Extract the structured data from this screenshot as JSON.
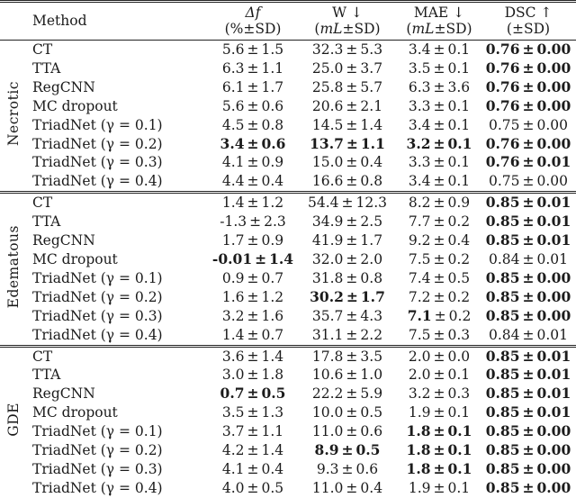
{
  "table": {
    "pm": "±",
    "columns": [
      {
        "key": "method",
        "label": "Method"
      },
      {
        "key": "delta_f",
        "label": "Δf",
        "sub_parts": [
          "(%",
          "",
          "±SD)"
        ]
      },
      {
        "key": "w",
        "label": "W ↓",
        "sub_parts": [
          "(",
          "mL",
          "±SD)"
        ]
      },
      {
        "key": "mae",
        "label": "MAE ↓",
        "sub_parts": [
          "(",
          "mL",
          "±SD)"
        ]
      },
      {
        "key": "dsc",
        "label": "DSC ↑",
        "sub_parts": [
          "(",
          "",
          "±SD)"
        ]
      }
    ],
    "sections": [
      {
        "group": "Necrotic",
        "rows": [
          {
            "method": "CT",
            "cells": [
              {
                "m": "5.6",
                "s": "1.5",
                "bold": "none"
              },
              {
                "m": "32.3",
                "s": "5.3",
                "bold": "none"
              },
              {
                "m": "3.4",
                "s": "0.1",
                "bold": "none"
              },
              {
                "m": "0.76",
                "s": "0.00",
                "bold": "all"
              }
            ]
          },
          {
            "method": "TTA",
            "cells": [
              {
                "m": "6.3",
                "s": "1.1",
                "bold": "none"
              },
              {
                "m": "25.0",
                "s": "3.7",
                "bold": "none"
              },
              {
                "m": "3.5",
                "s": "0.1",
                "bold": "none"
              },
              {
                "m": "0.76",
                "s": "0.00",
                "bold": "all"
              }
            ]
          },
          {
            "method": "RegCNN",
            "cells": [
              {
                "m": "6.1",
                "s": "1.7",
                "bold": "none"
              },
              {
                "m": "25.8",
                "s": "5.7",
                "bold": "none"
              },
              {
                "m": "6.3",
                "s": "3.6",
                "bold": "none"
              },
              {
                "m": "0.76",
                "s": "0.00",
                "bold": "all"
              }
            ]
          },
          {
            "method": "MC dropout",
            "cells": [
              {
                "m": "5.6",
                "s": "0.6",
                "bold": "none"
              },
              {
                "m": "20.6",
                "s": "2.1",
                "bold": "none"
              },
              {
                "m": "3.3",
                "s": "0.1",
                "bold": "none"
              },
              {
                "m": "0.76",
                "s": "0.00",
                "bold": "all"
              }
            ]
          },
          {
            "method": "TriadNet (γ = 0.1)",
            "cells": [
              {
                "m": "4.5",
                "s": "0.8",
                "bold": "none"
              },
              {
                "m": "14.5",
                "s": "1.4",
                "bold": "none"
              },
              {
                "m": "3.4",
                "s": "0.1",
                "bold": "none"
              },
              {
                "m": "0.75",
                "s": "0.00",
                "bold": "none"
              }
            ]
          },
          {
            "method": "TriadNet (γ = 0.2)",
            "cells": [
              {
                "m": "3.4",
                "s": "0.6",
                "bold": "all"
              },
              {
                "m": "13.7",
                "s": "1.1",
                "bold": "all"
              },
              {
                "m": "3.2",
                "s": "0.1",
                "bold": "all"
              },
              {
                "m": "0.76",
                "s": "0.00",
                "bold": "all"
              }
            ]
          },
          {
            "method": "TriadNet (γ = 0.3)",
            "cells": [
              {
                "m": "4.1",
                "s": "0.9",
                "bold": "none"
              },
              {
                "m": "15.0",
                "s": "0.4",
                "bold": "none"
              },
              {
                "m": "3.3",
                "s": "0.1",
                "bold": "none"
              },
              {
                "m": "0.76",
                "s": "0.01",
                "bold": "all"
              }
            ]
          },
          {
            "method": "TriadNet (γ = 0.4)",
            "cells": [
              {
                "m": "4.4",
                "s": "0.4",
                "bold": "none"
              },
              {
                "m": "16.6",
                "s": "0.8",
                "bold": "none"
              },
              {
                "m": "3.4",
                "s": "0.1",
                "bold": "none"
              },
              {
                "m": "0.75",
                "s": "0.00",
                "bold": "none"
              }
            ]
          }
        ]
      },
      {
        "group": "Edematous",
        "rows": [
          {
            "method": "CT",
            "cells": [
              {
                "m": "1.4",
                "s": "1.2",
                "bold": "none"
              },
              {
                "m": "54.4",
                "s": "12.3",
                "bold": "none"
              },
              {
                "m": "8.2",
                "s": "0.9",
                "bold": "none"
              },
              {
                "m": "0.85",
                "s": "0.01",
                "bold": "all"
              }
            ]
          },
          {
            "method": "TTA",
            "cells": [
              {
                "m": "-1.3",
                "s": "2.3",
                "bold": "none"
              },
              {
                "m": "34.9",
                "s": "2.5",
                "bold": "none"
              },
              {
                "m": "7.7",
                "s": "0.2",
                "bold": "none"
              },
              {
                "m": "0.85",
                "s": "0.01",
                "bold": "all"
              }
            ]
          },
          {
            "method": "RegCNN",
            "cells": [
              {
                "m": "1.7",
                "s": "0.9",
                "bold": "none"
              },
              {
                "m": "41.9",
                "s": "1.7",
                "bold": "none"
              },
              {
                "m": "9.2",
                "s": "0.4",
                "bold": "none"
              },
              {
                "m": "0.85",
                "s": "0.01",
                "bold": "all"
              }
            ]
          },
          {
            "method": "MC dropout",
            "cells": [
              {
                "m": "-0.01",
                "s": "1.4",
                "bold": "all"
              },
              {
                "m": "32.0",
                "s": "2.0",
                "bold": "none"
              },
              {
                "m": "7.5",
                "s": "0.2",
                "bold": "none"
              },
              {
                "m": "0.84",
                "s": "0.01",
                "bold": "none"
              }
            ]
          },
          {
            "method": "TriadNet (γ = 0.1)",
            "cells": [
              {
                "m": "0.9",
                "s": "0.7",
                "bold": "none"
              },
              {
                "m": "31.8",
                "s": "0.8",
                "bold": "none"
              },
              {
                "m": "7.4",
                "s": "0.5",
                "bold": "none"
              },
              {
                "m": "0.85",
                "s": "0.00",
                "bold": "all"
              }
            ]
          },
          {
            "method": "TriadNet (γ = 0.2)",
            "cells": [
              {
                "m": "1.6",
                "s": "1.2",
                "bold": "none"
              },
              {
                "m": "30.2",
                "s": "1.7",
                "bold": "all"
              },
              {
                "m": "7.2",
                "s": "0.2",
                "bold": "none"
              },
              {
                "m": "0.85",
                "s": "0.00",
                "bold": "all"
              }
            ]
          },
          {
            "method": "TriadNet (γ = 0.3)",
            "cells": [
              {
                "m": "3.2",
                "s": "1.6",
                "bold": "none"
              },
              {
                "m": "35.7",
                "s": "4.3",
                "bold": "none"
              },
              {
                "m": "7.1",
                "s": "0.2",
                "bold": "mean"
              },
              {
                "m": "0.85",
                "s": "0.00",
                "bold": "all"
              }
            ]
          },
          {
            "method": "TriadNet (γ = 0.4)",
            "cells": [
              {
                "m": "1.4",
                "s": "0.7",
                "bold": "none"
              },
              {
                "m": "31.1",
                "s": "2.2",
                "bold": "none"
              },
              {
                "m": "7.5",
                "s": "0.3",
                "bold": "none"
              },
              {
                "m": "0.84",
                "s": "0.01",
                "bold": "none"
              }
            ]
          }
        ]
      },
      {
        "group": "GDE",
        "rows": [
          {
            "method": "CT",
            "cells": [
              {
                "m": "3.6",
                "s": "1.4",
                "bold": "none"
              },
              {
                "m": "17.8",
                "s": "3.5",
                "bold": "none"
              },
              {
                "m": "2.0",
                "s": "0.0",
                "bold": "none"
              },
              {
                "m": "0.85",
                "s": "0.01",
                "bold": "all"
              }
            ]
          },
          {
            "method": "TTA",
            "cells": [
              {
                "m": "3.0",
                "s": "1.8",
                "bold": "none"
              },
              {
                "m": "10.6",
                "s": "1.0",
                "bold": "none"
              },
              {
                "m": "2.0",
                "s": "0.1",
                "bold": "none"
              },
              {
                "m": "0.85",
                "s": "0.01",
                "bold": "all"
              }
            ]
          },
          {
            "method": "RegCNN",
            "cells": [
              {
                "m": "0.7",
                "s": "0.5",
                "bold": "all"
              },
              {
                "m": "22.2",
                "s": "5.9",
                "bold": "none"
              },
              {
                "m": "3.2",
                "s": "0.3",
                "bold": "none"
              },
              {
                "m": "0.85",
                "s": "0.01",
                "bold": "all"
              }
            ]
          },
          {
            "method": "MC dropout",
            "cells": [
              {
                "m": "3.5",
                "s": "1.3",
                "bold": "none"
              },
              {
                "m": "10.0",
                "s": "0.5",
                "bold": "none"
              },
              {
                "m": "1.9",
                "s": "0.1",
                "bold": "none"
              },
              {
                "m": "0.85",
                "s": "0.01",
                "bold": "all"
              }
            ]
          },
          {
            "method": "TriadNet (γ = 0.1)",
            "cells": [
              {
                "m": "3.7",
                "s": "1.1",
                "bold": "none"
              },
              {
                "m": "11.0",
                "s": "0.6",
                "bold": "none"
              },
              {
                "m": "1.8",
                "s": "0.1",
                "bold": "all"
              },
              {
                "m": "0.85",
                "s": "0.00",
                "bold": "all"
              }
            ]
          },
          {
            "method": "TriadNet (γ = 0.2)",
            "cells": [
              {
                "m": "4.2",
                "s": "1.4",
                "bold": "none"
              },
              {
                "m": "8.9",
                "s": "0.5",
                "bold": "all"
              },
              {
                "m": "1.8",
                "s": "0.1",
                "bold": "all"
              },
              {
                "m": "0.85",
                "s": "0.00",
                "bold": "all"
              }
            ]
          },
          {
            "method": "TriadNet (γ = 0.3)",
            "cells": [
              {
                "m": "4.1",
                "s": "0.4",
                "bold": "none"
              },
              {
                "m": "9.3",
                "s": "0.6",
                "bold": "none"
              },
              {
                "m": "1.8",
                "s": "0.1",
                "bold": "all"
              },
              {
                "m": "0.85",
                "s": "0.00",
                "bold": "all"
              }
            ]
          },
          {
            "method": "TriadNet (γ = 0.4)",
            "cells": [
              {
                "m": "4.0",
                "s": "0.5",
                "bold": "none"
              },
              {
                "m": "11.0",
                "s": "0.4",
                "bold": "none"
              },
              {
                "m": "1.9",
                "s": "0.1",
                "bold": "none"
              },
              {
                "m": "0.85",
                "s": "0.00",
                "bold": "all"
              }
            ]
          }
        ]
      }
    ]
  }
}
